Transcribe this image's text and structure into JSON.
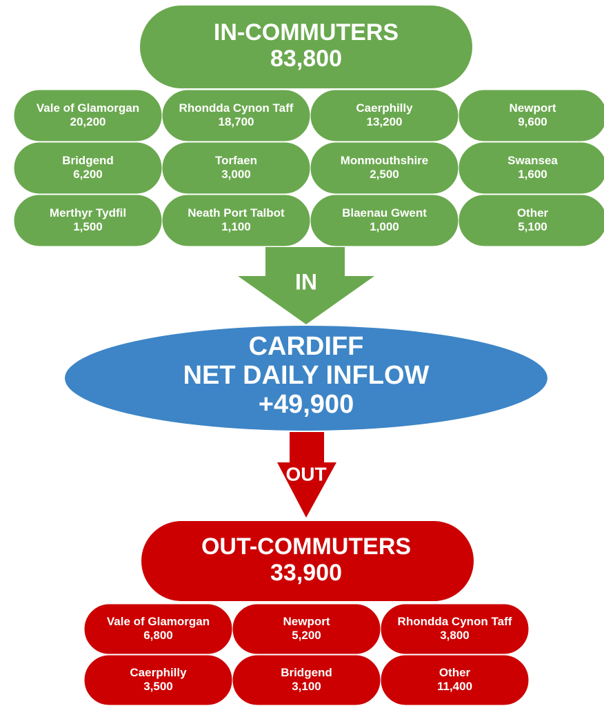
{
  "in_commuters": {
    "title": "IN-COMMUTERS",
    "total": "83,800",
    "areas": [
      {
        "name": "Vale of Glamorgan",
        "value": "20,200"
      },
      {
        "name": "Rhondda Cynon Taff",
        "value": "18,700"
      },
      {
        "name": "Caerphilly",
        "value": "13,200"
      },
      {
        "name": "Newport",
        "value": "9,600"
      },
      {
        "name": "Bridgend",
        "value": "6,200"
      },
      {
        "name": "Torfaen",
        "value": "3,000"
      },
      {
        "name": "Monmouthshire",
        "value": "2,500"
      },
      {
        "name": "Swansea",
        "value": "1,600"
      },
      {
        "name": "Merthyr Tydfil",
        "value": "1,500"
      },
      {
        "name": "Neath Port Talbot",
        "value": "1,100"
      },
      {
        "name": "Blaenau Gwent",
        "value": "1,000"
      },
      {
        "name": "Other",
        "value": "5,100"
      }
    ]
  },
  "in_arrow": {
    "label": "IN"
  },
  "cardiff": {
    "lines": [
      "CARDIFF",
      "NET DAILY INFLOW",
      "+49,900"
    ]
  },
  "out_arrow": {
    "label": "OUT"
  },
  "out_commuters": {
    "title": "OUT-COMMUTERS",
    "total": "33,900",
    "areas": [
      {
        "name": "Vale of Glamorgan",
        "value": "6,800"
      },
      {
        "name": "Newport",
        "value": "5,200"
      },
      {
        "name": "Rhondda Cynon Taff",
        "value": "3,800"
      },
      {
        "name": "Caerphilly",
        "value": "3,500"
      },
      {
        "name": "Bridgend",
        "value": "3,100"
      },
      {
        "name": "Other",
        "value": "11,400"
      }
    ]
  }
}
